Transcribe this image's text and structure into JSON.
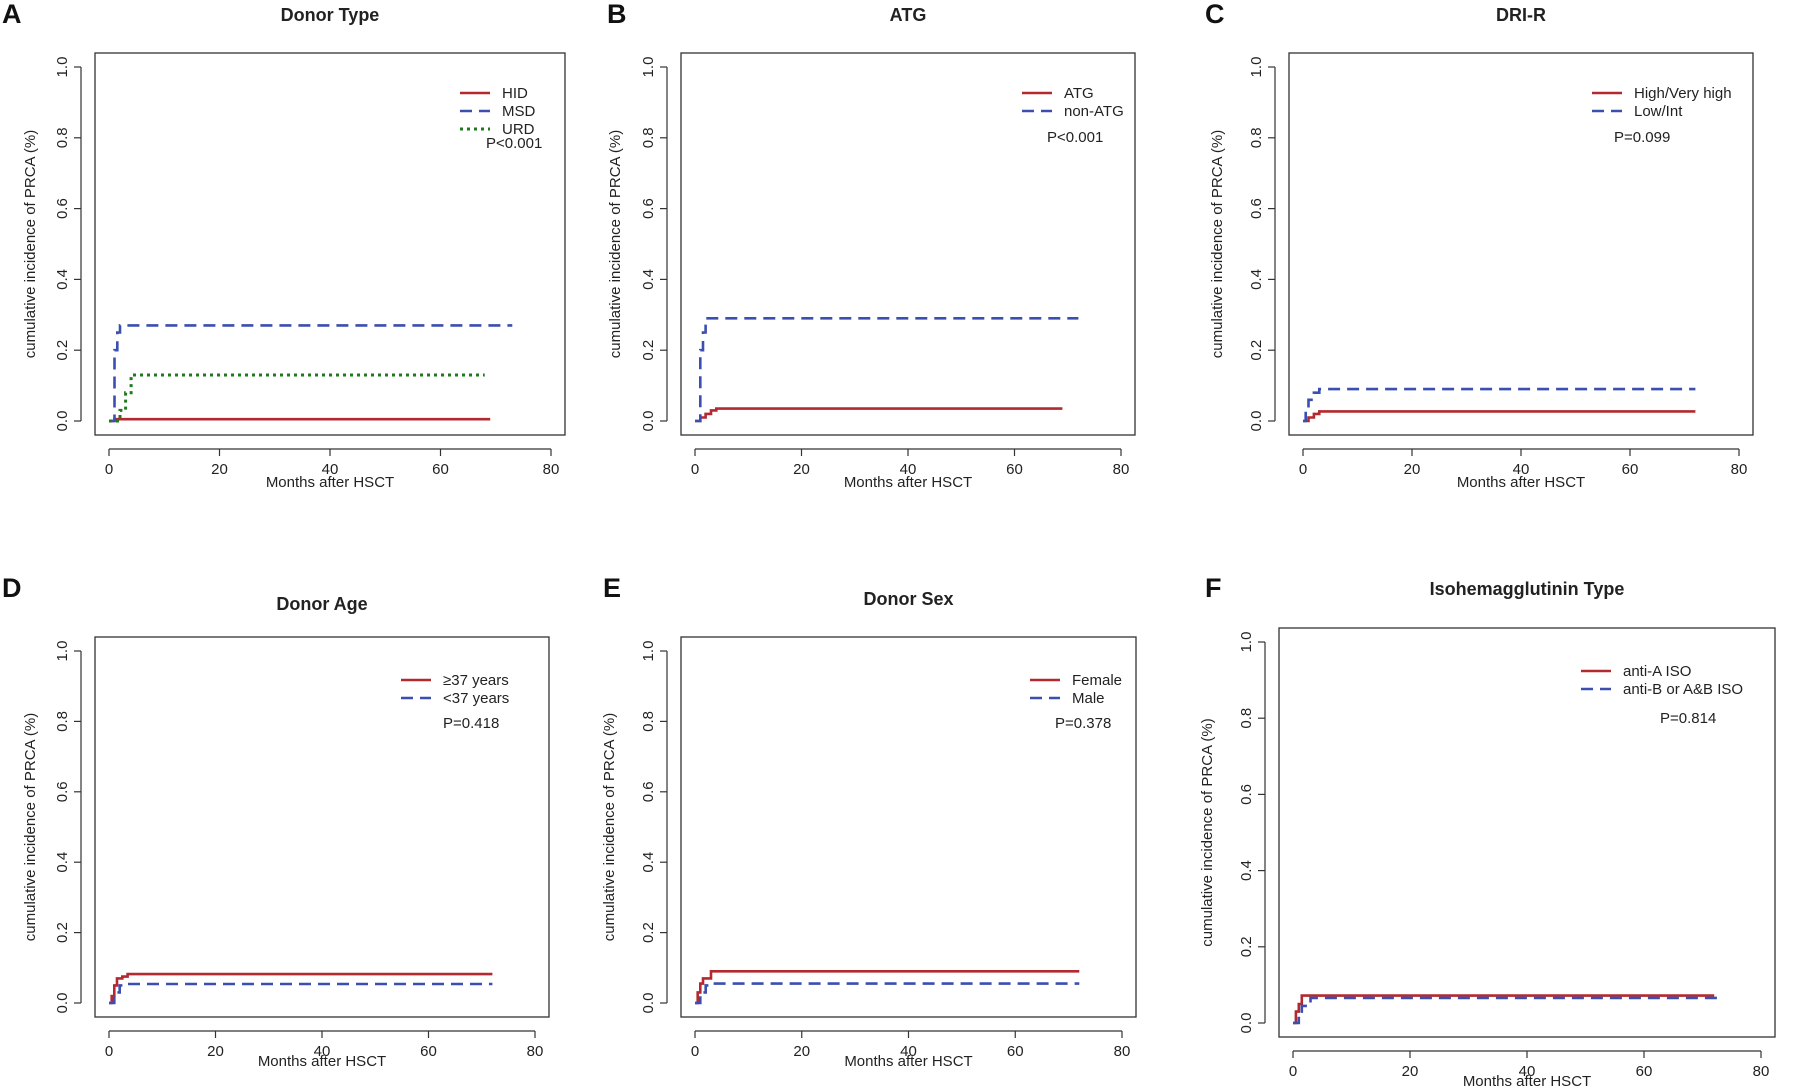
{
  "chart_data": [
    {
      "letter": "A",
      "type": "line",
      "title": "Donor Type",
      "xlabel": "Months after HSCT",
      "ylabel": "cumulative incidence of PRCA (%)",
      "xlim": [
        0,
        80
      ],
      "ylim": [
        0,
        1
      ],
      "xticks": [
        "0",
        "20",
        "40",
        "60",
        "80"
      ],
      "yticks": [
        "0.0",
        "0.2",
        "0.4",
        "0.6",
        "0.8",
        "1.0"
      ],
      "legend_position": "top-right",
      "pvalue": "P<0.001",
      "series": [
        {
          "name": "HID",
          "color": "#b22a2f",
          "style": "solid",
          "points": [
            [
              0,
              0
            ],
            [
              1,
              0
            ],
            [
              1,
              0.005
            ],
            [
              69,
              0.005
            ]
          ]
        },
        {
          "name": "MSD",
          "color": "#3b4fb0",
          "style": "dashed",
          "points": [
            [
              0,
              0
            ],
            [
              1,
              0
            ],
            [
              1,
              0.2
            ],
            [
              1.5,
              0.2
            ],
            [
              1.5,
              0.25
            ],
            [
              2,
              0.25
            ],
            [
              2,
              0.27
            ],
            [
              73,
              0.27
            ]
          ]
        },
        {
          "name": "URD",
          "color": "#1f7a1f",
          "style": "dotted",
          "points": [
            [
              0,
              0
            ],
            [
              2,
              0
            ],
            [
              2,
              0.03
            ],
            [
              3,
              0.03
            ],
            [
              3,
              0.08
            ],
            [
              4,
              0.08
            ],
            [
              4,
              0.13
            ],
            [
              68,
              0.13
            ]
          ]
        }
      ]
    },
    {
      "letter": "B",
      "type": "line",
      "title": "ATG",
      "xlabel": "Months after HSCT",
      "ylabel": "cumulative incidence of PRCA (%)",
      "xlim": [
        0,
        80
      ],
      "ylim": [
        0,
        1
      ],
      "xticks": [
        "0",
        "20",
        "40",
        "60",
        "80"
      ],
      "yticks": [
        "0.0",
        "0.2",
        "0.4",
        "0.6",
        "0.8",
        "1.0"
      ],
      "legend_position": "top-right",
      "pvalue": "P<0.001",
      "series": [
        {
          "name": "ATG",
          "color": "#b22a2f",
          "style": "solid",
          "points": [
            [
              0,
              0
            ],
            [
              1,
              0
            ],
            [
              1,
              0.01
            ],
            [
              2,
              0.01
            ],
            [
              2,
              0.02
            ],
            [
              3,
              0.02
            ],
            [
              3,
              0.03
            ],
            [
              4,
              0.03
            ],
            [
              4,
              0.035
            ],
            [
              69,
              0.035
            ]
          ]
        },
        {
          "name": "non-ATG",
          "color": "#3b4fb0",
          "style": "dashed",
          "points": [
            [
              0,
              0
            ],
            [
              1,
              0
            ],
            [
              1,
              0.2
            ],
            [
              1.5,
              0.2
            ],
            [
              1.5,
              0.25
            ],
            [
              2,
              0.25
            ],
            [
              2,
              0.29
            ],
            [
              72,
              0.29
            ]
          ]
        }
      ]
    },
    {
      "letter": "C",
      "type": "line",
      "title": "DRI-R",
      "xlabel": "Months after HSCT",
      "ylabel": "cumulative incidence of PRCA (%)",
      "xlim": [
        0,
        80
      ],
      "ylim": [
        0,
        1
      ],
      "xticks": [
        "0",
        "20",
        "40",
        "60",
        "80"
      ],
      "yticks": [
        "0.0",
        "0.2",
        "0.4",
        "0.6",
        "0.8",
        "1.0"
      ],
      "legend_position": "top-right",
      "pvalue": "P=0.099",
      "series": [
        {
          "name": "High/Very high",
          "color": "#b22a2f",
          "style": "solid",
          "points": [
            [
              0,
              0
            ],
            [
              1,
              0
            ],
            [
              1,
              0.01
            ],
            [
              2,
              0.01
            ],
            [
              2,
              0.02
            ],
            [
              3,
              0.02
            ],
            [
              3,
              0.027
            ],
            [
              72,
              0.027
            ]
          ]
        },
        {
          "name": "Low/Int",
          "color": "#3b4fb0",
          "style": "dashed",
          "points": [
            [
              0,
              0
            ],
            [
              0.5,
              0
            ],
            [
              0.5,
              0.03
            ],
            [
              1,
              0.03
            ],
            [
              1,
              0.06
            ],
            [
              2,
              0.06
            ],
            [
              2,
              0.08
            ],
            [
              3,
              0.08
            ],
            [
              3,
              0.09
            ],
            [
              72,
              0.09
            ]
          ]
        }
      ]
    },
    {
      "letter": "D",
      "type": "line",
      "title": "Donor Age",
      "xlabel": "Months after HSCT",
      "ylabel": "cumulative incidence of PRCA (%)",
      "xlim": [
        0,
        80
      ],
      "ylim": [
        0,
        1
      ],
      "xticks": [
        "0",
        "20",
        "40",
        "60",
        "80"
      ],
      "yticks": [
        "0.0",
        "0.2",
        "0.4",
        "0.6",
        "0.8",
        "1.0"
      ],
      "legend_position": "top-right",
      "pvalue": "P=0.418",
      "series": [
        {
          "name": "≥37 years",
          "color": "#b22a2f",
          "style": "solid",
          "points": [
            [
              0,
              0
            ],
            [
              0.5,
              0
            ],
            [
              0.5,
              0.02
            ],
            [
              1,
              0.02
            ],
            [
              1,
              0.05
            ],
            [
              1.5,
              0.05
            ],
            [
              1.5,
              0.07
            ],
            [
              2.5,
              0.07
            ],
            [
              2.5,
              0.075
            ],
            [
              3.5,
              0.075
            ],
            [
              3.5,
              0.082
            ],
            [
              72,
              0.082
            ]
          ]
        },
        {
          "name": "<37 years",
          "color": "#3b4fb0",
          "style": "dashed",
          "points": [
            [
              0,
              0
            ],
            [
              1,
              0
            ],
            [
              1,
              0.03
            ],
            [
              2,
              0.03
            ],
            [
              2,
              0.05
            ],
            [
              3,
              0.05
            ],
            [
              3,
              0.054
            ],
            [
              72,
              0.054
            ]
          ]
        }
      ]
    },
    {
      "letter": "E",
      "type": "line",
      "title": "Donor Sex",
      "xlabel": "Months after HSCT",
      "ylabel": "cumulative incidence of PRCA (%)",
      "xlim": [
        0,
        80
      ],
      "ylim": [
        0,
        1
      ],
      "xticks": [
        "0",
        "20",
        "40",
        "60",
        "80"
      ],
      "yticks": [
        "0.0",
        "0.2",
        "0.4",
        "0.6",
        "0.8",
        "1.0"
      ],
      "legend_position": "top-right",
      "pvalue": "P=0.378",
      "series": [
        {
          "name": "Female",
          "color": "#b22a2f",
          "style": "solid",
          "points": [
            [
              0,
              0
            ],
            [
              0.5,
              0
            ],
            [
              0.5,
              0.03
            ],
            [
              1,
              0.03
            ],
            [
              1,
              0.055
            ],
            [
              1.5,
              0.055
            ],
            [
              1.5,
              0.07
            ],
            [
              3,
              0.07
            ],
            [
              3,
              0.09
            ],
            [
              72,
              0.09
            ]
          ]
        },
        {
          "name": "Male",
          "color": "#3b4fb0",
          "style": "dashed",
          "points": [
            [
              0,
              0
            ],
            [
              1,
              0
            ],
            [
              1,
              0.03
            ],
            [
              2,
              0.03
            ],
            [
              2,
              0.05
            ],
            [
              3,
              0.05
            ],
            [
              3,
              0.055
            ],
            [
              72,
              0.055
            ]
          ]
        }
      ]
    },
    {
      "letter": "F",
      "type": "line",
      "title": "Isohemagglutinin Type",
      "xlabel": "Months after HSCT",
      "ylabel": "cumulative incidence of PRCA (%)",
      "xlim": [
        0,
        80
      ],
      "ylim": [
        0,
        1
      ],
      "xticks": [
        "0",
        "20",
        "40",
        "60",
        "80"
      ],
      "yticks": [
        "0.0",
        "0.2",
        "0.4",
        "0.6",
        "0.8",
        "1.0"
      ],
      "legend_position": "top-right",
      "pvalue": "P=0.814",
      "series": [
        {
          "name": "anti-A ISO",
          "color": "#b22a2f",
          "style": "solid",
          "points": [
            [
              0,
              0
            ],
            [
              0.5,
              0
            ],
            [
              0.5,
              0.03
            ],
            [
              1,
              0.03
            ],
            [
              1,
              0.05
            ],
            [
              1.5,
              0.05
            ],
            [
              1.5,
              0.072
            ],
            [
              72,
              0.072
            ]
          ]
        },
        {
          "name": "anti-B or A&B ISO",
          "color": "#3b4fb0",
          "style": "dashed",
          "points": [
            [
              0,
              0
            ],
            [
              1,
              0
            ],
            [
              1,
              0.03
            ],
            [
              1.5,
              0.03
            ],
            [
              1.5,
              0.045
            ],
            [
              3,
              0.045
            ],
            [
              3,
              0.066
            ],
            [
              73,
              0.066
            ]
          ]
        }
      ]
    }
  ]
}
